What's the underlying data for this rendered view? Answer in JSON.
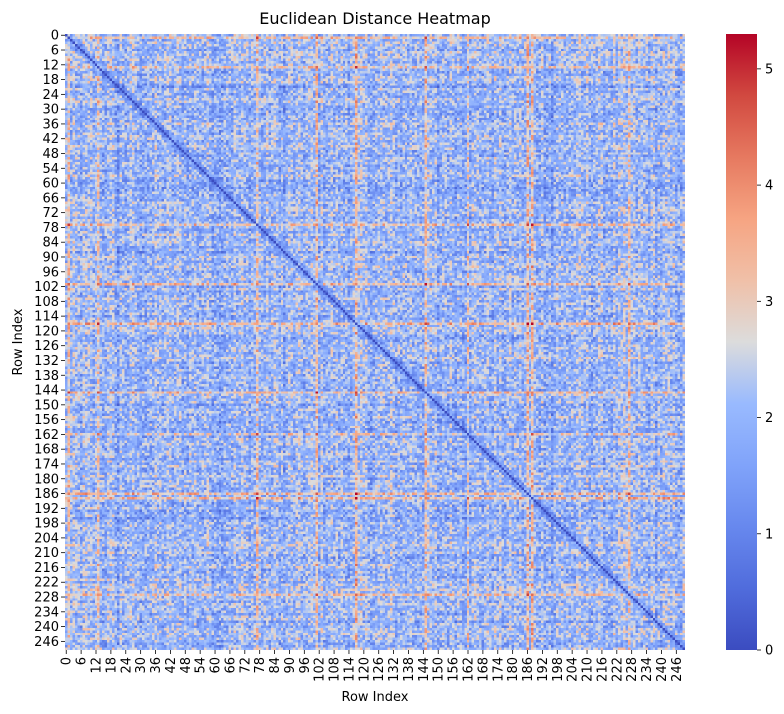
{
  "chart_data": {
    "type": "heatmap",
    "title": "Euclidean Distance Heatmap",
    "xlabel": "Row Index",
    "ylabel": "Row Index",
    "size": 250,
    "row_labels_shown": [
      "0",
      "6",
      "12",
      "18",
      "24",
      "30",
      "36",
      "42",
      "48",
      "54",
      "60",
      "66",
      "72",
      "78",
      "84",
      "90",
      "96",
      "102",
      "108",
      "114",
      "120",
      "126",
      "132",
      "138",
      "144",
      "150",
      "156",
      "162",
      "168",
      "174",
      "180",
      "186",
      "192",
      "198",
      "204",
      "210",
      "216",
      "222",
      "228",
      "234",
      "240",
      "246"
    ],
    "col_labels_shown": [
      "0",
      "6",
      "12",
      "18",
      "24",
      "30",
      "36",
      "42",
      "48",
      "54",
      "60",
      "66",
      "72",
      "78",
      "84",
      "90",
      "96",
      "102",
      "108",
      "114",
      "120",
      "126",
      "132",
      "138",
      "144",
      "150",
      "156",
      "162",
      "168",
      "174",
      "180",
      "186",
      "192",
      "198",
      "204",
      "210",
      "216",
      "222",
      "228",
      "234",
      "240",
      "246"
    ],
    "colorbar": {
      "vmin": 0,
      "vmax": 5.3,
      "ticks": [
        "0",
        "1",
        "2",
        "3",
        "4",
        "5"
      ],
      "colormap": "coolwarm",
      "low_color": "#3b4cc0",
      "mid_color": "#dddddd",
      "high_color": "#b40426"
    },
    "diagonal_value": 0,
    "typical_range": [
      1.0,
      3.0
    ],
    "high_distance_rows": [
      1,
      13,
      77,
      101,
      117,
      145,
      162,
      186,
      188,
      227
    ],
    "low_distance_rows": [
      21,
      30,
      62,
      88,
      150,
      196
    ],
    "grid": false
  }
}
